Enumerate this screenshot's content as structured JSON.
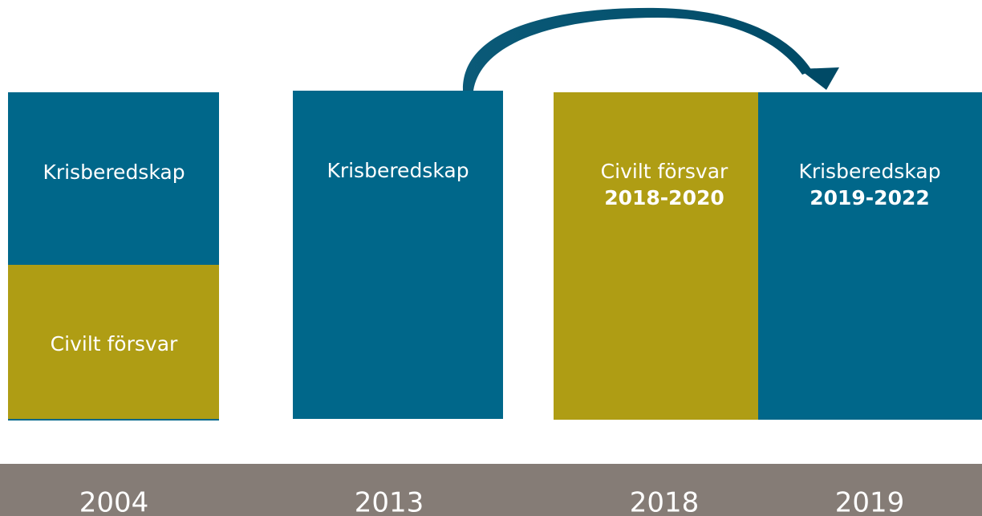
{
  "blocks": [
    {
      "label": "Krisberedskap"
    },
    {
      "label": "Civilt försvar"
    },
    {
      "label": "Krisberedskap"
    },
    {
      "label": "Civilt försvar",
      "period": "2018-2020"
    },
    {
      "label": "Krisberedskap",
      "period": "2019-2022"
    }
  ],
  "timeline": {
    "years": [
      "2004",
      "2013",
      "2018",
      "2019"
    ]
  }
}
